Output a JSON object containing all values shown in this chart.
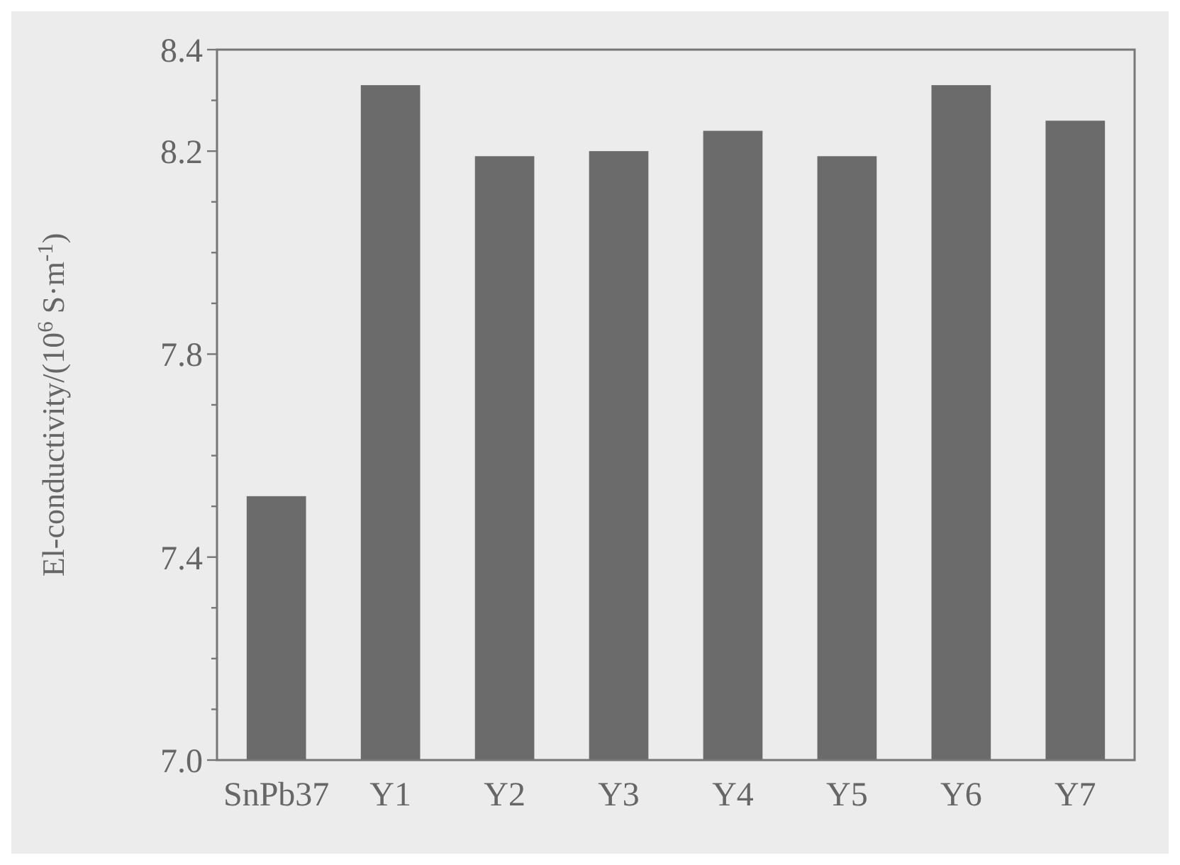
{
  "chart_data": {
    "type": "bar",
    "ylabel": "El-conductivity/(10$^{6}$ S·m$^{-1}$)",
    "categories": [
      "SnPb37",
      "Y1",
      "Y2",
      "Y3",
      "Y4",
      "Y5",
      "Y6",
      "Y7"
    ],
    "values": [
      7.52,
      8.33,
      8.19,
      8.2,
      8.24,
      8.19,
      8.33,
      8.26
    ],
    "color": "#6b6b6b",
    "ylim": [
      7.0,
      8.4
    ],
    "yticks": [
      {
        "value": 7.0,
        "label": "7.0"
      },
      {
        "value": 7.1,
        "label": null
      },
      {
        "value": 7.2,
        "label": null
      },
      {
        "value": 7.3,
        "label": null
      },
      7.4,
      {
        "value": 7.5,
        "label": null
      },
      {
        "value": 7.6,
        "label": null
      },
      {
        "value": 7.7,
        "label": null
      },
      7.8,
      {
        "value": 7.9,
        "label": null
      },
      {
        "value": 8.0,
        "label": null
      },
      {
        "value": 8.1,
        "label": null
      },
      8.2,
      {
        "value": 8.3,
        "label": null
      },
      8.4
    ],
    "grid": false
  }
}
